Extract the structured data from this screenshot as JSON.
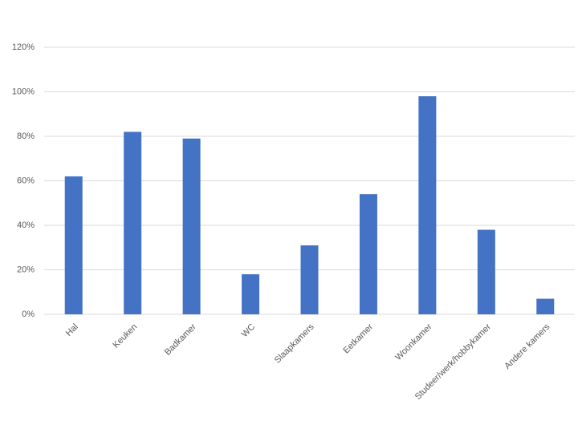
{
  "chart_data": {
    "type": "bar",
    "categories": [
      "Hal",
      "Keuken",
      "Badkamer",
      "WC",
      "Slaapkamers",
      "Eetkamer",
      "Woonkamer",
      "Studeer/werk/hobbykamer",
      "Andere kamers"
    ],
    "values": [
      62,
      82,
      79,
      18,
      31,
      54,
      98,
      38,
      7
    ],
    "color": "#4472c4",
    "ylim": [
      0,
      120
    ],
    "yticks": [
      {
        "value": 0,
        "label": "0%"
      },
      {
        "value": 20,
        "label": "20%"
      },
      {
        "value": 40,
        "label": "40%"
      },
      {
        "value": 60,
        "label": "60%"
      },
      {
        "value": 80,
        "label": "80%"
      },
      {
        "value": 100,
        "label": "100%"
      },
      {
        "value": 120,
        "label": "120%"
      }
    ],
    "grid": true
  }
}
